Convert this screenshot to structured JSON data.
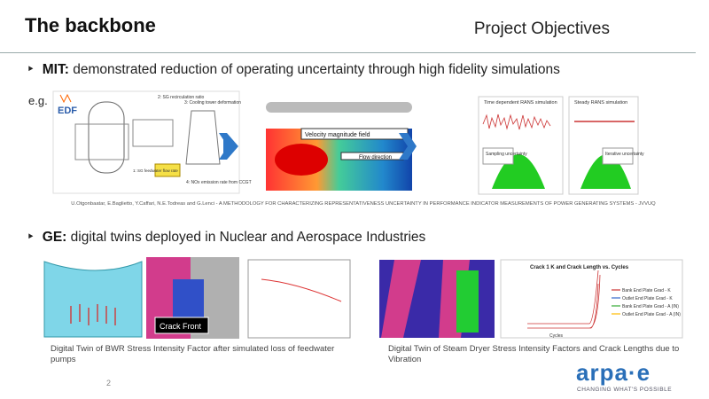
{
  "header": {
    "title": "The backbone",
    "section": "Project Objectives"
  },
  "mit": {
    "label": "MIT:",
    "text": " demonstrated reduction of operating uncertainty through high fidelity simulations",
    "eg": "e.g.",
    "figures": {
      "plant": {
        "logo": "EDF",
        "labels": [
          "2: SG recirculation ratio",
          "3: Cooling tower deformation",
          "1: SG feedwater flow rate",
          "4: NOx emission rate from CCGT"
        ]
      },
      "cfd": {
        "field": "Velocity magnitude field",
        "flow": "Flow direction"
      },
      "rans": {
        "left": "Time dependent RANS simulation",
        "right": "Steady RANS simulation",
        "left_note": "Sampling uncertainty",
        "right_note": "Iterative uncertainty"
      }
    },
    "citation": "U.Otgonbaatar, E.Baglietto, Y.Caffari, N.E.Todreas and G.Lenci - A METHODOLOGY FOR CHARACTERIZING REPRESENTATIVENESS UNCERTAINTY IN PERFORMANCE INDICATOR MEASUREMENTS OF POWER GENERATING SYSTEMS - JVVUQ"
  },
  "ge": {
    "label": "GE:",
    "text": " digital twins deployed in Nuclear and Aerospace Industries",
    "figures": {
      "crack_front": "Crack Front",
      "plot_title": "Crack 1 K and Crack Length vs. Cycles",
      "legend": [
        "Bank End Plate Grad - K",
        "Outlet End Plate Grad - K",
        "Bank End Plate Grad - A (IN)",
        "Outlet End Plate Grad - A (IN)"
      ],
      "x_label": "Cycles"
    },
    "captions": [
      "Digital Twin of BWR Stress Intensity Factor after simulated loss of feedwater pumps",
      "Digital Twin of Steam Dryer Stress Intensity Factors and Crack Lengths due to Vibration"
    ]
  },
  "footer": {
    "page": "2",
    "logo": "arpa·e",
    "tagline": "CHANGING WHAT'S POSSIBLE"
  }
}
